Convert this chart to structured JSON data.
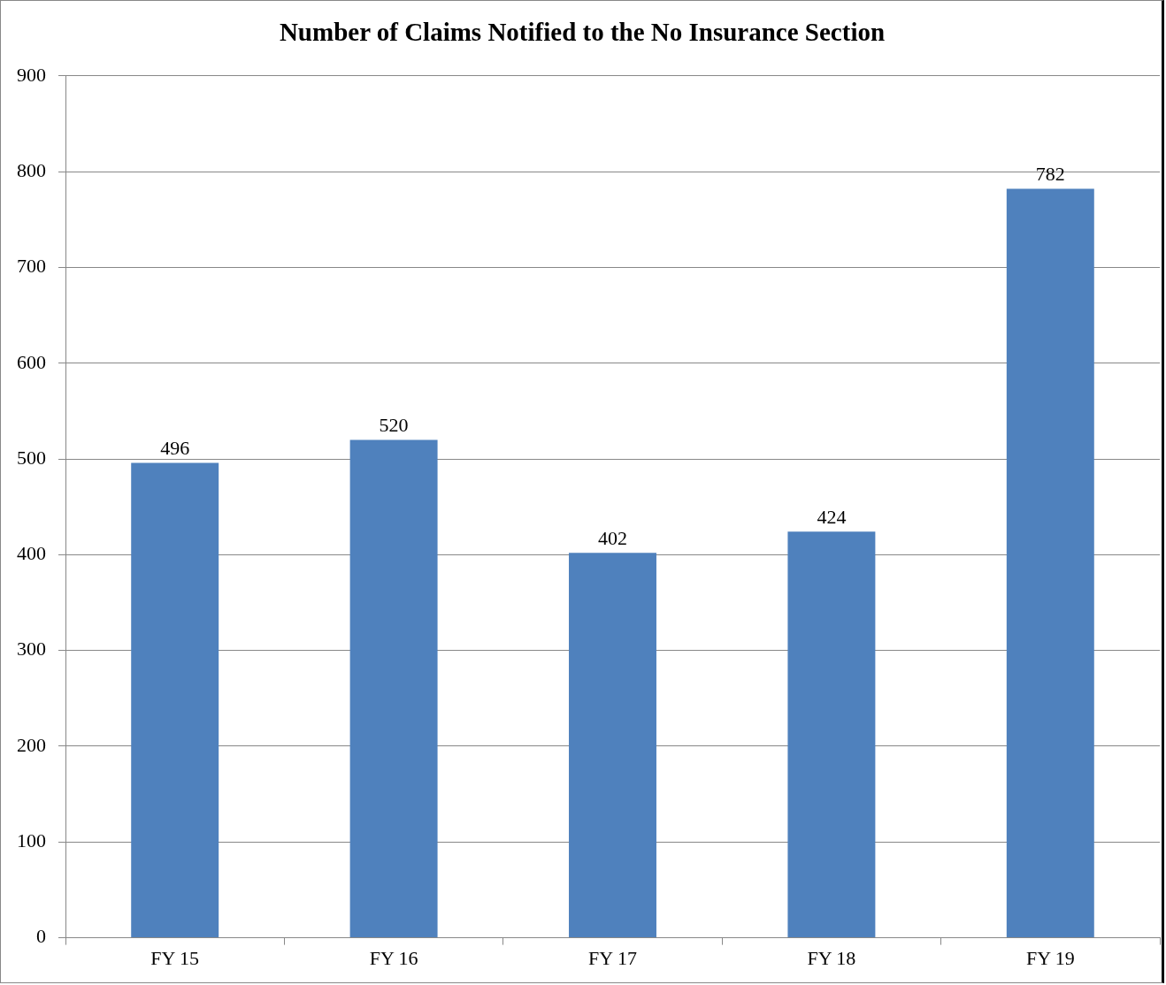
{
  "chart_data": {
    "type": "bar",
    "title": "Number of Claims Notified to the No Insurance Section",
    "categories": [
      "FY 15",
      "FY 16",
      "FY 17",
      "FY 18",
      "FY 19"
    ],
    "values": [
      496,
      520,
      402,
      424,
      782
    ],
    "color": "#4f81bd",
    "ylim": [
      0,
      900
    ],
    "yticks": [
      0,
      100,
      200,
      300,
      400,
      500,
      600,
      700,
      800,
      900
    ],
    "grid": "y",
    "legend": false,
    "data_labels": true
  }
}
